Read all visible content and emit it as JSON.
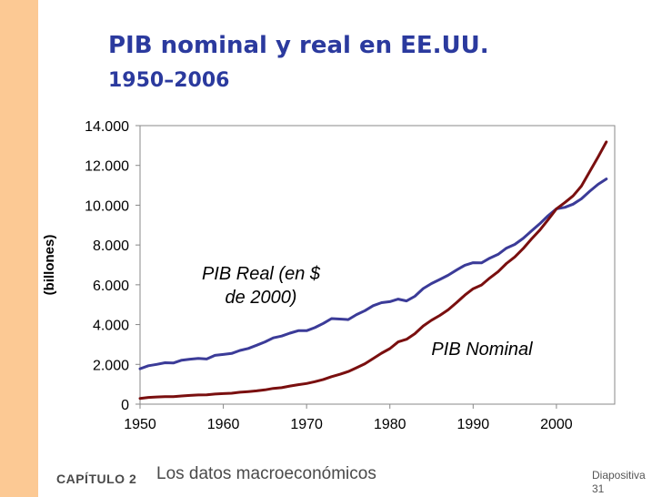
{
  "slide": {
    "title": "PIB nominal y real en EE.UU.",
    "subtitle": "1950–2006",
    "footer_chapter": "CAPÍTULO 2",
    "footer_topic": "Los datos macroeconómicos",
    "slide_label": "Diapositiva",
    "slide_number": "31",
    "band_color": "#fcc994",
    "title_color": "#2b3a9e"
  },
  "chart_data": {
    "type": "line",
    "title": "",
    "xlabel": "",
    "ylabel": "(billones)",
    "xlim": [
      1950,
      2007
    ],
    "ylim": [
      0,
      14000
    ],
    "grid": false,
    "x_ticks": [
      1950,
      1960,
      1970,
      1980,
      1990,
      2000
    ],
    "x_tick_labels": [
      "1950",
      "1960",
      "1970",
      "1980",
      "1990",
      "2000"
    ],
    "y_ticks": [
      0,
      2000,
      4000,
      6000,
      8000,
      10000,
      12000,
      14000
    ],
    "y_tick_labels": [
      "0",
      "2.000",
      "4.000",
      "6.000",
      "8.000",
      "10.000",
      "12.000",
      "14.000"
    ],
    "series": [
      {
        "name": "PIB Real (en $ de 2000)",
        "label_lines": [
          "PIB Real (en $",
          "de 2000)"
        ],
        "color": "#3b3b98",
        "x": [
          1950,
          1951,
          1952,
          1953,
          1954,
          1955,
          1956,
          1957,
          1958,
          1959,
          1960,
          1961,
          1962,
          1963,
          1964,
          1965,
          1966,
          1967,
          1968,
          1969,
          1970,
          1971,
          1972,
          1973,
          1974,
          1975,
          1976,
          1977,
          1978,
          1979,
          1980,
          1981,
          1982,
          1983,
          1984,
          1985,
          1986,
          1987,
          1988,
          1989,
          1990,
          1991,
          1992,
          1993,
          1994,
          1995,
          1996,
          1997,
          1998,
          1999,
          2000,
          2001,
          2002,
          2003,
          2004,
          2005,
          2006
        ],
        "values": [
          1780,
          1930,
          2000,
          2080,
          2070,
          2210,
          2260,
          2300,
          2270,
          2450,
          2500,
          2550,
          2700,
          2800,
          2960,
          3130,
          3330,
          3420,
          3570,
          3690,
          3690,
          3850,
          4060,
          4300,
          4280,
          4250,
          4500,
          4700,
          4950,
          5100,
          5150,
          5280,
          5190,
          5420,
          5810,
          6060,
          6270,
          6480,
          6740,
          6980,
          7110,
          7100,
          7340,
          7530,
          7840,
          8030,
          8330,
          8700,
          9070,
          9470,
          9820,
          9890,
          10050,
          10320,
          10700,
          11050,
          11320
        ]
      },
      {
        "name": "PIB Nominal",
        "label_lines": [
          "PIB Nominal"
        ],
        "color": "#7a0f0f",
        "x": [
          1950,
          1951,
          1952,
          1953,
          1954,
          1955,
          1956,
          1957,
          1958,
          1959,
          1960,
          1961,
          1962,
          1963,
          1964,
          1965,
          1966,
          1967,
          1968,
          1969,
          1970,
          1971,
          1972,
          1973,
          1974,
          1975,
          1976,
          1977,
          1978,
          1979,
          1980,
          1981,
          1982,
          1983,
          1984,
          1985,
          1986,
          1987,
          1988,
          1989,
          1990,
          1991,
          1992,
          1993,
          1994,
          1995,
          1996,
          1997,
          1998,
          1999,
          2000,
          2001,
          2002,
          2003,
          2004,
          2005,
          2006
        ],
        "values": [
          290,
          340,
          360,
          380,
          380,
          410,
          440,
          460,
          470,
          510,
          530,
          550,
          600,
          630,
          670,
          720,
          790,
          830,
          910,
          980,
          1040,
          1130,
          1240,
          1380,
          1500,
          1640,
          1830,
          2030,
          2290,
          2560,
          2790,
          3130,
          3260,
          3540,
          3930,
          4220,
          4460,
          4740,
          5100,
          5480,
          5800,
          5990,
          6340,
          6660,
          7070,
          7400,
          7820,
          8300,
          8750,
          9270,
          9820,
          10130,
          10470,
          10960,
          11690,
          12420,
          13180
        ]
      }
    ]
  }
}
